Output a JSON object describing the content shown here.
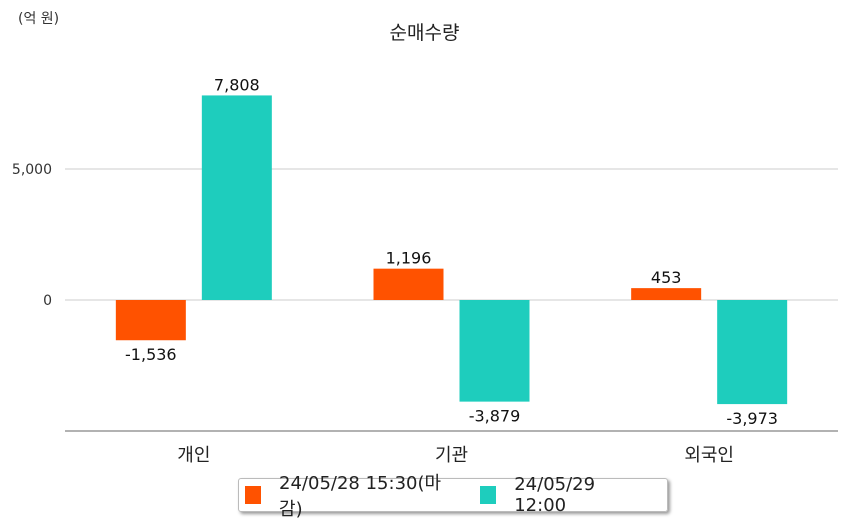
{
  "chart_data": {
    "type": "bar",
    "title": "순매수량",
    "unit": "(억 원)",
    "categories": [
      "개인",
      "기관",
      "외국인"
    ],
    "series": [
      {
        "name": "24/05/28 15:30(마감)",
        "color": "#ff5200",
        "values": [
          -1536,
          1196,
          453
        ],
        "labels": [
          "-1,536",
          "1,196",
          "453"
        ]
      },
      {
        "name": "24/05/29 12:00",
        "color": "#1ecdbd",
        "values": [
          7808,
          -3879,
          -3973
        ],
        "labels": [
          "7,808",
          "-3,879",
          "-3,973"
        ]
      }
    ],
    "yticks": [
      0,
      5000
    ],
    "ytick_labels": [
      "0",
      "5,000"
    ],
    "ylim": [
      -5000,
      10000
    ],
    "grid": true,
    "legend": "bottom"
  }
}
